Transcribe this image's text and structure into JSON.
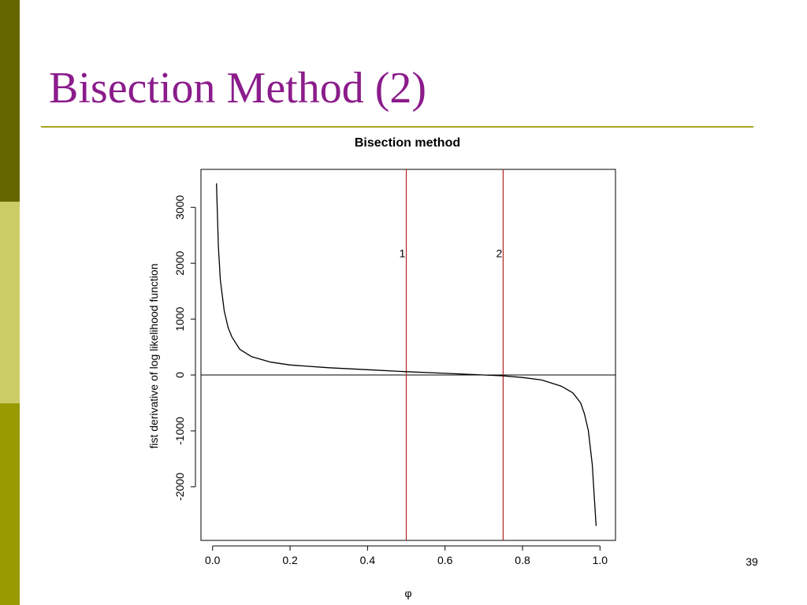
{
  "slide": {
    "title": "Bisection Method (2)",
    "page_number": "39",
    "colors": {
      "title": "#8b1c8b",
      "rule": "#a6a61e",
      "sidebar": [
        "#666600",
        "#cccc66",
        "#999900"
      ]
    }
  },
  "chart_data": {
    "type": "line",
    "title": "Bisection method",
    "xlabel": "φ",
    "ylabel": "fist derivative of log likelihood function",
    "xlim": [
      -0.03,
      1.04
    ],
    "ylim": [
      -2960,
      3680
    ],
    "xticks": [
      0.0,
      0.2,
      0.4,
      0.6,
      0.8,
      1.0
    ],
    "xtick_labels": [
      "0.0",
      "0.2",
      "0.4",
      "0.6",
      "0.8",
      "1.0"
    ],
    "yticks": [
      -2000,
      -1000,
      0,
      1000,
      2000,
      3000
    ],
    "ytick_labels": [
      "-2000",
      "-1000",
      "0",
      "1000",
      "2000",
      "3000"
    ],
    "grid": false,
    "series": [
      {
        "color": "#000000",
        "x": [
          0.01,
          0.015,
          0.02,
          0.03,
          0.04,
          0.05,
          0.07,
          0.1,
          0.15,
          0.2,
          0.3,
          0.4,
          0.5,
          0.6,
          0.7,
          0.75,
          0.8,
          0.85,
          0.9,
          0.93,
          0.95,
          0.96,
          0.97,
          0.98,
          0.99
        ],
        "y": [
          3430,
          2300,
          1700,
          1150,
          850,
          680,
          460,
          330,
          230,
          180,
          130,
          95,
          60,
          30,
          0,
          -15,
          -45,
          -90,
          -200,
          -320,
          -500,
          -700,
          -1000,
          -1600,
          -2700
        ]
      }
    ],
    "hlines": [
      {
        "y": 0,
        "color": "#000000"
      }
    ],
    "vlines": [
      {
        "x": 0.5,
        "label": "1",
        "label_y": 2180,
        "color": "#b22222"
      },
      {
        "x": 0.75,
        "label": "2",
        "label_y": 2180,
        "color": "#b22222"
      }
    ]
  }
}
